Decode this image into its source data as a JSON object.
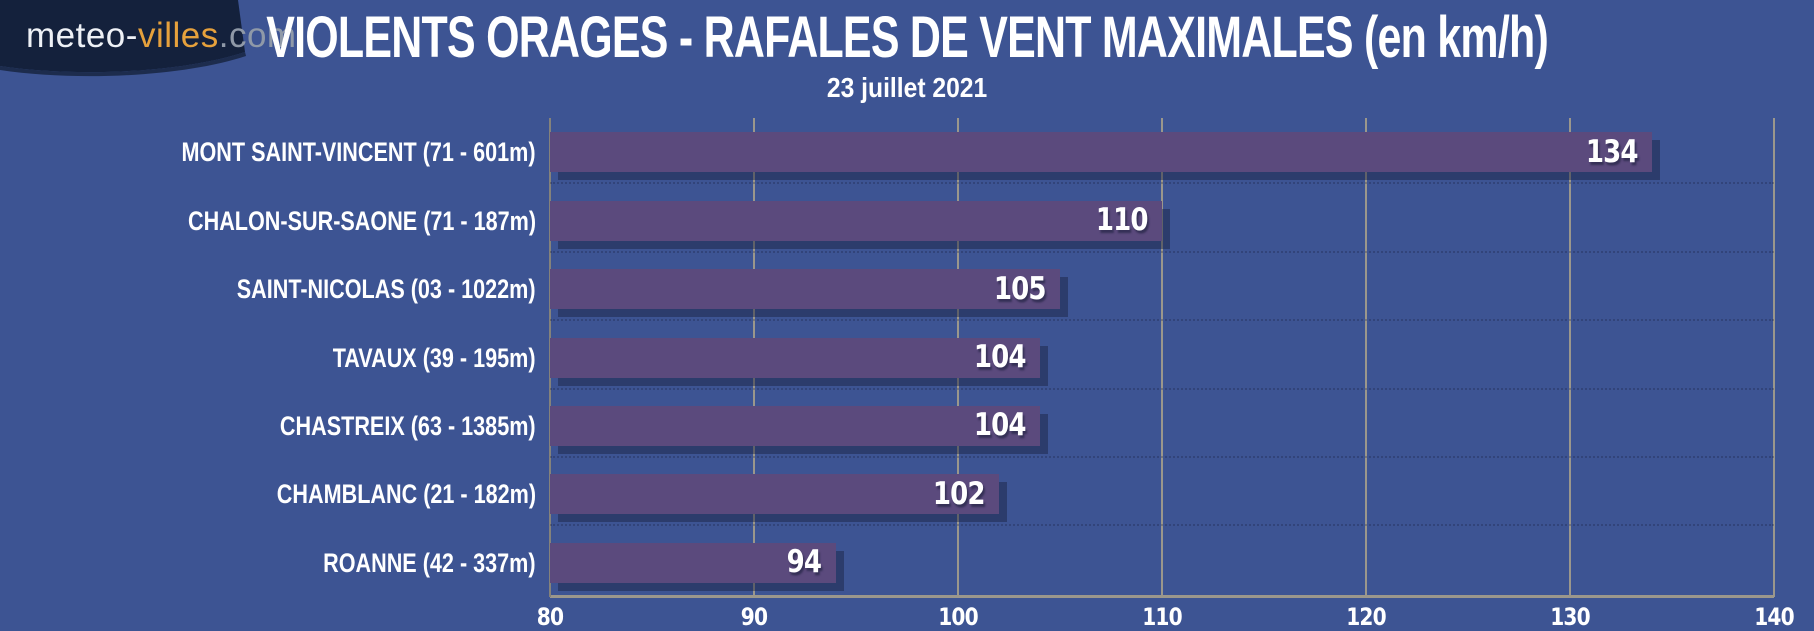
{
  "logo": {
    "part_meteo": "meteo-",
    "part_villes": "villes",
    "part_com": ".com",
    "background_color": "#14213c"
  },
  "header": {
    "title": "VIOLENTS ORAGES - RAFALES DE VENT MAXIMALES (en km/h)",
    "subtitle": "23 juillet 2021"
  },
  "colors": {
    "page_background": "#3d5493",
    "bar": "#5b4a7d",
    "bar_shadow": "#2e3d6b",
    "gridline": "#9b978c",
    "text": "#ffffff",
    "logo_accent": "#e6a13c"
  },
  "chart_data": {
    "type": "bar",
    "orientation": "horizontal",
    "title": "VIOLENTS ORAGES - RAFALES DE VENT MAXIMALES (en km/h)",
    "subtitle": "23 juillet 2021",
    "categories": [
      "MONT SAINT-VINCENT (71 - 601m)",
      "CHALON-SUR-SAONE (71 - 187m)",
      "SAINT-NICOLAS (03 - 1022m)",
      "TAVAUX (39 - 195m)",
      "CHASTREIX (63 - 1385m)",
      "CHAMBLANC (21 - 182m)",
      "ROANNE (42 - 337m)"
    ],
    "values": [
      134,
      110,
      105,
      104,
      104,
      102,
      94
    ],
    "value_labels_shown": true,
    "xlim": [
      80,
      140
    ],
    "xticks": [
      80,
      90,
      100,
      110,
      120,
      130,
      140
    ],
    "xlabel": "",
    "ylabel": "",
    "grid": "vertical",
    "legend": "none"
  }
}
